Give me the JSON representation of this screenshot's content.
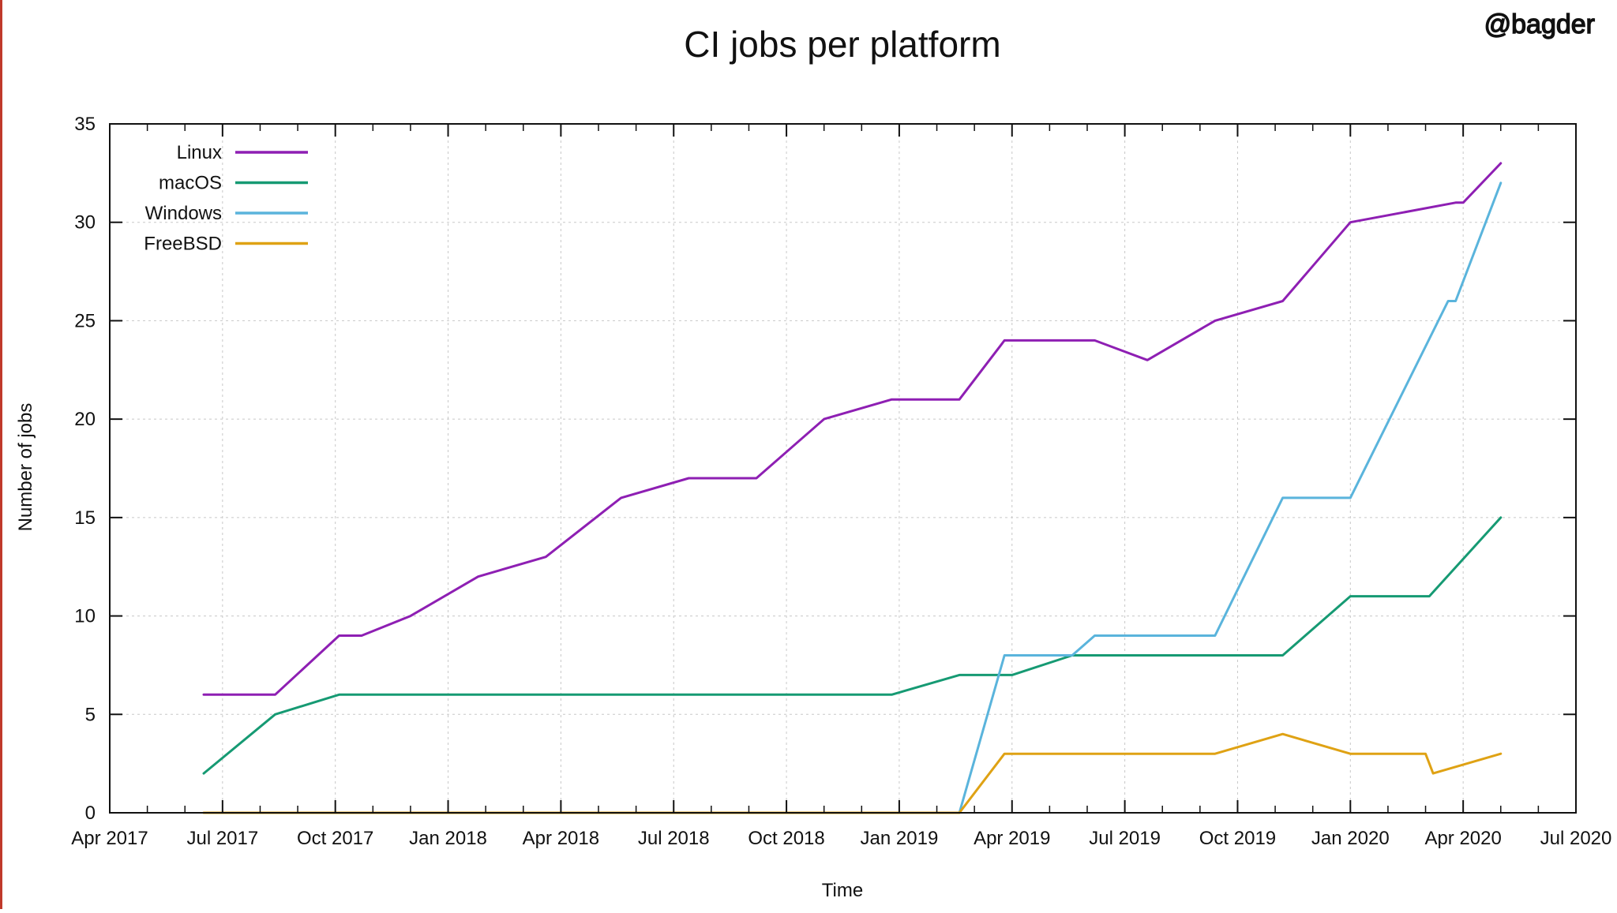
{
  "watermark": "@bagder",
  "colors": {
    "linux": "#8e1fb3",
    "macos": "#169a73",
    "windows": "#5ab4dc",
    "freebsd": "#dfa214",
    "grid": "#c8c8c8",
    "axis": "#111111",
    "edge": "#c0392b"
  },
  "chart_data": {
    "type": "line",
    "title": "CI jobs per platform",
    "xlabel": "Time",
    "ylabel": "Number of jobs",
    "xlim": [
      0,
      39
    ],
    "ylim": [
      0,
      35
    ],
    "x_unit": "months since Apr 2017",
    "x_ticks": [
      {
        "x": 0,
        "label": "Apr 2017"
      },
      {
        "x": 3,
        "label": "Jul 2017"
      },
      {
        "x": 6,
        "label": "Oct 2017"
      },
      {
        "x": 9,
        "label": "Jan 2018"
      },
      {
        "x": 12,
        "label": "Apr 2018"
      },
      {
        "x": 15,
        "label": "Jul 2018"
      },
      {
        "x": 18,
        "label": "Oct 2018"
      },
      {
        "x": 21,
        "label": "Jan 2019"
      },
      {
        "x": 24,
        "label": "Apr 2019"
      },
      {
        "x": 27,
        "label": "Jul 2019"
      },
      {
        "x": 30,
        "label": "Oct 2019"
      },
      {
        "x": 33,
        "label": "Jan 2020"
      },
      {
        "x": 36,
        "label": "Apr 2020"
      },
      {
        "x": 39,
        "label": "Jul 2020"
      }
    ],
    "y_ticks": [
      0,
      5,
      10,
      15,
      20,
      25,
      30,
      35
    ],
    "grid": true,
    "legend_position": "top-left",
    "series": [
      {
        "name": "Linux",
        "key": "linux",
        "points": [
          [
            2.5,
            6
          ],
          [
            4.4,
            6
          ],
          [
            6.1,
            9
          ],
          [
            6.7,
            9
          ],
          [
            8.0,
            10
          ],
          [
            9.8,
            12
          ],
          [
            11.6,
            13
          ],
          [
            13.6,
            16
          ],
          [
            15.4,
            17
          ],
          [
            17.2,
            17
          ],
          [
            19.0,
            20
          ],
          [
            20.8,
            21
          ],
          [
            22.6,
            21
          ],
          [
            23.8,
            24
          ],
          [
            25.6,
            24
          ],
          [
            26.2,
            24
          ],
          [
            27.6,
            23
          ],
          [
            29.4,
            25
          ],
          [
            31.2,
            26
          ],
          [
            33.0,
            30
          ],
          [
            35.8,
            31
          ],
          [
            36.0,
            31
          ],
          [
            37.0,
            33
          ]
        ]
      },
      {
        "name": "macOS",
        "key": "macos",
        "points": [
          [
            2.5,
            2
          ],
          [
            4.4,
            5
          ],
          [
            6.1,
            6
          ],
          [
            20.8,
            6
          ],
          [
            22.6,
            7
          ],
          [
            24.0,
            7
          ],
          [
            25.6,
            8
          ],
          [
            31.2,
            8
          ],
          [
            33.0,
            11
          ],
          [
            35.1,
            11
          ],
          [
            37.0,
            15
          ]
        ]
      },
      {
        "name": "Windows",
        "key": "windows",
        "points": [
          [
            22.6,
            0
          ],
          [
            23.8,
            8
          ],
          [
            25.6,
            8
          ],
          [
            26.2,
            9
          ],
          [
            29.4,
            9
          ],
          [
            31.2,
            16
          ],
          [
            33.0,
            16
          ],
          [
            35.6,
            26
          ],
          [
            35.8,
            26
          ],
          [
            37.0,
            32
          ]
        ]
      },
      {
        "name": "FreeBSD",
        "key": "freebsd",
        "points": [
          [
            2.5,
            0
          ],
          [
            22.6,
            0
          ],
          [
            23.8,
            3
          ],
          [
            29.4,
            3
          ],
          [
            31.2,
            4
          ],
          [
            33.0,
            3
          ],
          [
            35.0,
            3
          ],
          [
            35.2,
            2
          ],
          [
            37.0,
            3
          ]
        ]
      }
    ]
  }
}
